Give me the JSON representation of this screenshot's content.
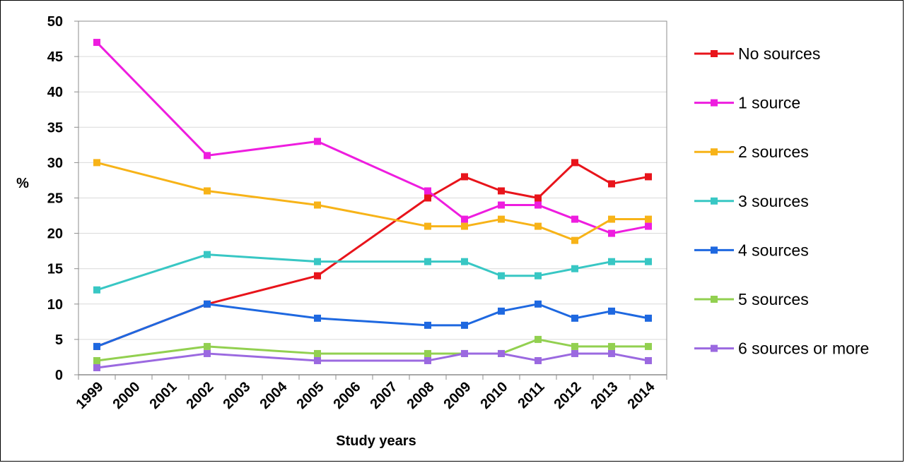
{
  "chart_data": {
    "type": "line",
    "title": "",
    "xlabel": "Study years",
    "ylabel": "%",
    "ylim": [
      0,
      50
    ],
    "yticks": [
      "0",
      "5",
      "10",
      "15",
      "20",
      "25",
      "30",
      "35",
      "40",
      "45",
      "50"
    ],
    "categories": [
      "1999",
      "2000",
      "2001",
      "2002",
      "2003",
      "2004",
      "2005",
      "2006",
      "2007",
      "2008",
      "2009",
      "2010",
      "2011",
      "2012",
      "2013",
      "2014"
    ],
    "grid": true,
    "legend_position": "right",
    "series": [
      {
        "name": "No sources",
        "color": "#e8141b",
        "x": [
          "1999",
          "2002",
          "2005",
          "2008",
          "2009",
          "2010",
          "2011",
          "2012",
          "2013",
          "2014"
        ],
        "values": [
          4,
          10,
          14,
          25,
          28,
          26,
          25,
          30,
          27,
          28
        ]
      },
      {
        "name": "1 source",
        "color": "#ee1ddf",
        "x": [
          "1999",
          "2002",
          "2005",
          "2008",
          "2009",
          "2010",
          "2011",
          "2012",
          "2013",
          "2014"
        ],
        "values": [
          47,
          31,
          33,
          26,
          22,
          24,
          24,
          22,
          20,
          21
        ]
      },
      {
        "name": "2 sources",
        "color": "#f7b318",
        "x": [
          "1999",
          "2002",
          "2005",
          "2008",
          "2009",
          "2010",
          "2011",
          "2012",
          "2013",
          "2014"
        ],
        "values": [
          30,
          26,
          24,
          21,
          21,
          22,
          21,
          19,
          22,
          22
        ]
      },
      {
        "name": "3 sources",
        "color": "#38c7c4",
        "x": [
          "1999",
          "2002",
          "2005",
          "2008",
          "2009",
          "2010",
          "2011",
          "2012",
          "2013",
          "2014"
        ],
        "values": [
          12,
          17,
          16,
          16,
          16,
          14,
          14,
          15,
          16,
          16
        ]
      },
      {
        "name": "4 sources",
        "color": "#1e68e0",
        "x": [
          "1999",
          "2002",
          "2005",
          "2008",
          "2009",
          "2010",
          "2011",
          "2012",
          "2013",
          "2014"
        ],
        "values": [
          4,
          10,
          8,
          7,
          7,
          9,
          10,
          8,
          9,
          8
        ]
      },
      {
        "name": "5 sources",
        "color": "#92d050",
        "x": [
          "1999",
          "2002",
          "2005",
          "2008",
          "2009",
          "2010",
          "2011",
          "2012",
          "2013",
          "2014"
        ],
        "values": [
          2,
          4,
          3,
          3,
          3,
          3,
          5,
          4,
          4,
          4
        ]
      },
      {
        "name": "6 sources or more",
        "color": "#9b69e0",
        "x": [
          "1999",
          "2002",
          "2005",
          "2008",
          "2009",
          "2010",
          "2011",
          "2012",
          "2013",
          "2014"
        ],
        "values": [
          1,
          3,
          2,
          2,
          3,
          3,
          2,
          3,
          3,
          2
        ]
      }
    ]
  }
}
